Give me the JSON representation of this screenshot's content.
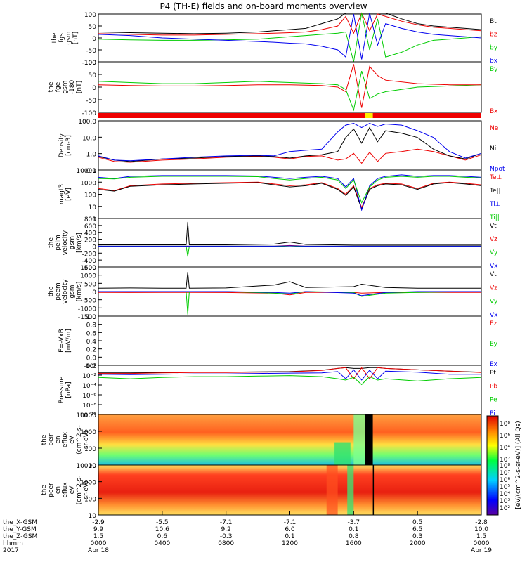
{
  "title": "P4 (TH-E) fields and on-board moments overview",
  "colors": {
    "black": "#000000",
    "red": "#ee0000",
    "green": "#00cc00",
    "blue": "#0000ee",
    "yellow": "#ffee00"
  },
  "chart_data": [
    {
      "type": "line",
      "name": "fgs",
      "ylabel": [
        "the",
        "fgs",
        "gsm",
        "[nT]"
      ],
      "ylim": [
        -100,
        100
      ],
      "yticks": [
        "100",
        "50",
        "0",
        "-50",
        "-100"
      ],
      "legend": [
        {
          "text": "Bt",
          "color": "black"
        },
        {
          "text": "bz",
          "color": "red"
        },
        {
          "text": "by",
          "color": "green"
        },
        {
          "text": "bx",
          "color": "blue"
        }
      ],
      "x": [
        0,
        2,
        4,
        6,
        8,
        10,
        11,
        12,
        13,
        14,
        15,
        15.5,
        16,
        16.5,
        17,
        17.5,
        18,
        19,
        20,
        21,
        22,
        23,
        24
      ],
      "series": [
        {
          "name": "Bt",
          "color": "black",
          "values": [
            25,
            22,
            20,
            18,
            20,
            25,
            30,
            35,
            40,
            60,
            80,
            110,
            110,
            110,
            110,
            110,
            105,
            80,
            60,
            50,
            45,
            40,
            35
          ]
        },
        {
          "name": "bz",
          "color": "red",
          "values": [
            18,
            15,
            12,
            12,
            15,
            18,
            20,
            22,
            25,
            35,
            50,
            90,
            20,
            120,
            30,
            100,
            90,
            70,
            55,
            45,
            40,
            35,
            30
          ]
        },
        {
          "name": "by",
          "color": "green",
          "values": [
            -5,
            -8,
            -10,
            -10,
            -8,
            -5,
            0,
            5,
            10,
            15,
            20,
            25,
            -100,
            110,
            -50,
            80,
            -80,
            -60,
            -30,
            -10,
            -5,
            0,
            5
          ]
        },
        {
          "name": "bx",
          "color": "blue",
          "values": [
            15,
            10,
            0,
            -5,
            -10,
            -15,
            -18,
            -22,
            -25,
            -35,
            -50,
            -80,
            100,
            -90,
            120,
            -30,
            60,
            40,
            25,
            15,
            10,
            5,
            0
          ]
        }
      ]
    },
    {
      "type": "line",
      "name": "fge",
      "ylabel": [
        "the",
        "fge",
        "gsm",
        "-180",
        "[nT]"
      ],
      "ylim": [
        -120,
        100
      ],
      "yticks": [
        "100",
        "50",
        "0",
        "-50",
        "-100"
      ],
      "legend": [
        {
          "text": "By",
          "color": "green"
        },
        {
          "text": "Bx",
          "color": "red"
        }
      ],
      "x": [
        0,
        2,
        4,
        6,
        8,
        10,
        12,
        14,
        15,
        15.5,
        16,
        16.5,
        17,
        17.5,
        18,
        20,
        22,
        24
      ],
      "series": [
        {
          "name": "By",
          "color": "green",
          "values": [
            15,
            10,
            5,
            5,
            10,
            15,
            10,
            5,
            0,
            -20,
            -110,
            60,
            -60,
            -40,
            -30,
            -10,
            -5,
            0
          ]
        },
        {
          "name": "Bx",
          "color": "red",
          "values": [
            0,
            -3,
            -5,
            -5,
            -3,
            0,
            0,
            -3,
            -10,
            -30,
            90,
            -100,
            80,
            40,
            20,
            5,
            0,
            0
          ]
        }
      ]
    },
    {
      "type": "line",
      "name": "density",
      "log": true,
      "ylabel": [
        "Density",
        "[cm-3]"
      ],
      "ylim": [
        0.1,
        300
      ],
      "yticks": [
        "100.0",
        "10.0",
        "1.0",
        "0.1"
      ],
      "legend": [
        {
          "text": "Ne",
          "color": "red"
        },
        {
          "text": "Ni",
          "color": "black"
        },
        {
          "text": "Npot",
          "color": "blue"
        }
      ],
      "x": [
        0,
        1,
        2,
        4,
        6,
        8,
        10,
        11,
        12,
        13,
        14,
        15,
        15.5,
        16,
        16.5,
        17,
        17.5,
        18,
        19,
        20,
        21,
        22,
        23,
        24
      ],
      "series": [
        {
          "name": "Ne",
          "color": "red",
          "values": [
            0.8,
            0.4,
            0.35,
            0.5,
            0.6,
            0.8,
            0.9,
            0.8,
            0.6,
            0.9,
            1.0,
            0.5,
            0.6,
            1.5,
            0.3,
            1.8,
            0.4,
            1.5,
            2.0,
            3.0,
            2.0,
            1.0,
            0.5,
            1.2
          ]
        },
        {
          "name": "Ni",
          "color": "black",
          "values": [
            0.9,
            0.5,
            0.4,
            0.6,
            0.7,
            0.9,
            1.0,
            0.9,
            0.7,
            1.0,
            1.2,
            2.0,
            20,
            80,
            8,
            100,
            10,
            60,
            40,
            20,
            3,
            1.0,
            0.6,
            1.5
          ]
        },
        {
          "name": "Npot",
          "color": "blue",
          "values": [
            1.0,
            0.5,
            0.45,
            0.6,
            0.8,
            1.0,
            1.1,
            1.0,
            2.0,
            2.5,
            3.0,
            50,
            150,
            200,
            100,
            200,
            120,
            180,
            150,
            60,
            20,
            2.0,
            0.7,
            1.5
          ]
        }
      ]
    },
    {
      "type": "line",
      "name": "temperature",
      "log": true,
      "ylabel": [
        "magt3",
        "[eV]"
      ],
      "ylim": [
        1,
        10000
      ],
      "yticks": [
        "10000",
        "1000",
        "100",
        "10",
        "1"
      ],
      "legend": [
        {
          "text": "Te⊥",
          "color": "red"
        },
        {
          "text": "Te||",
          "color": "black"
        },
        {
          "text": "Ti⊥",
          "color": "blue"
        },
        {
          "text": "Ti||",
          "color": "green"
        }
      ],
      "x": [
        0,
        1,
        2,
        4,
        6,
        8,
        10,
        11,
        12,
        13,
        14,
        15,
        15.5,
        16,
        16.5,
        17,
        17.5,
        18,
        19,
        20,
        21,
        22,
        23,
        24
      ],
      "series": [
        {
          "name": "Te⊥",
          "color": "red",
          "values": [
            300,
            200,
            500,
            700,
            800,
            900,
            1000,
            700,
            500,
            600,
            900,
            300,
            100,
            500,
            8,
            300,
            600,
            800,
            700,
            300,
            800,
            1000,
            800,
            600
          ]
        },
        {
          "name": "Te||",
          "color": "black",
          "values": [
            250,
            180,
            450,
            600,
            700,
            800,
            900,
            600,
            400,
            500,
            800,
            250,
            80,
            400,
            6,
            250,
            500,
            700,
            600,
            250,
            700,
            900,
            700,
            500
          ]
        },
        {
          "name": "Ti⊥",
          "color": "blue",
          "values": [
            2500,
            2000,
            3000,
            3500,
            3500,
            3500,
            3200,
            2500,
            2000,
            2500,
            3000,
            2000,
            400,
            2000,
            5,
            500,
            2000,
            3000,
            4000,
            3000,
            3500,
            3500,
            3000,
            2500
          ]
        },
        {
          "name": "Ti||",
          "color": "green",
          "values": [
            2000,
            1800,
            2500,
            3000,
            3000,
            3000,
            2800,
            2000,
            1500,
            2000,
            2500,
            1500,
            300,
            1500,
            20,
            400,
            1500,
            2500,
            3000,
            2500,
            3000,
            3000,
            2500,
            2200
          ]
        }
      ]
    },
    {
      "type": "line",
      "name": "peim_velocity",
      "ylabel": [
        "the",
        "peim",
        "velocity",
        "gsm",
        "[km/s]"
      ],
      "ylim": [
        -600,
        800
      ],
      "yticks": [
        "800",
        "600",
        "400",
        "200",
        "0",
        "-200",
        "-400",
        "-600"
      ],
      "legend": [
        {
          "text": "Vt",
          "color": "black"
        },
        {
          "text": "Vz",
          "color": "red"
        },
        {
          "text": "Vy",
          "color": "green"
        },
        {
          "text": "Vx",
          "color": "blue"
        }
      ],
      "x": [
        0,
        2,
        4,
        5.5,
        5.6,
        5.7,
        8,
        11,
        12,
        13,
        16,
        18,
        20,
        24
      ],
      "series": [
        {
          "name": "Vt",
          "color": "black",
          "values": [
            40,
            40,
            40,
            40,
            700,
            40,
            40,
            60,
            120,
            50,
            30,
            30,
            30,
            30
          ]
        },
        {
          "name": "Vz",
          "color": "red",
          "values": [
            0,
            0,
            0,
            0,
            0,
            0,
            0,
            0,
            20,
            0,
            0,
            0,
            0,
            0
          ]
        },
        {
          "name": "Vy",
          "color": "green",
          "values": [
            0,
            0,
            0,
            0,
            -300,
            0,
            0,
            0,
            -20,
            0,
            0,
            0,
            0,
            0
          ]
        },
        {
          "name": "Vx",
          "color": "blue",
          "values": [
            0,
            0,
            0,
            0,
            0,
            0,
            0,
            0,
            10,
            0,
            0,
            0,
            0,
            0
          ]
        }
      ]
    },
    {
      "type": "line",
      "name": "peem_velocity",
      "ylabel": [
        "the",
        "peem",
        "velocity",
        "gsm",
        "[km/s]"
      ],
      "ylim": [
        -1500,
        1500
      ],
      "yticks": [
        "1500",
        "1000",
        "500",
        "0",
        "-500",
        "-1000",
        "-1500"
      ],
      "legend": [
        {
          "text": "Vt",
          "color": "black"
        },
        {
          "text": "Vz",
          "color": "red"
        },
        {
          "text": "Vy",
          "color": "green"
        },
        {
          "text": "Vx",
          "color": "blue"
        }
      ],
      "x": [
        0,
        2,
        4,
        5.5,
        5.6,
        5.7,
        8,
        11,
        12,
        13,
        16,
        16.5,
        18,
        20,
        24
      ],
      "series": [
        {
          "name": "Vt",
          "color": "black",
          "values": [
            200,
            220,
            200,
            200,
            1200,
            200,
            220,
            400,
            600,
            250,
            300,
            450,
            250,
            200,
            200
          ]
        },
        {
          "name": "Vz",
          "color": "red",
          "values": [
            -50,
            -60,
            -50,
            -50,
            -50,
            -50,
            -60,
            -100,
            -200,
            -50,
            -50,
            -100,
            -50,
            -50,
            -50
          ]
        },
        {
          "name": "Vy",
          "color": "green",
          "values": [
            0,
            0,
            0,
            0,
            -1400,
            0,
            0,
            -100,
            -150,
            0,
            -50,
            -300,
            -100,
            -50,
            0
          ]
        },
        {
          "name": "Vx",
          "color": "blue",
          "values": [
            0,
            0,
            0,
            0,
            0,
            0,
            0,
            -50,
            -100,
            0,
            -100,
            -250,
            -50,
            0,
            0
          ]
        }
      ]
    },
    {
      "type": "line",
      "name": "efield",
      "ylabel": [
        "E=-VxB",
        "[mV/m]"
      ],
      "ylim": [
        -0.2,
        1.0
      ],
      "yticks": [
        "1.0",
        "0.8",
        "0.6",
        "0.4",
        "0.2",
        "0.0",
        "-0.2"
      ],
      "legend": [
        {
          "text": "Ez",
          "color": "red"
        },
        {
          "text": "Ey",
          "color": "green"
        },
        {
          "text": "Ex",
          "color": "blue"
        }
      ],
      "x": [
        0,
        24
      ],
      "series": []
    },
    {
      "type": "line",
      "name": "pressure",
      "log": true,
      "ylabel": [
        "Pressure",
        "[nPa]"
      ],
      "ylim": [
        1e-10,
        10
      ],
      "yticks": [
        "10⁰",
        "10⁻²",
        "10⁻⁴",
        "10⁻⁶",
        "10⁻⁸",
        "10⁻¹⁰"
      ],
      "legend": [
        {
          "text": "Pt",
          "color": "black"
        },
        {
          "text": "Pb",
          "color": "red"
        },
        {
          "text": "Pe",
          "color": "green"
        },
        {
          "text": "Pi",
          "color": "blue"
        }
      ],
      "x": [
        0,
        2,
        4,
        6,
        8,
        10,
        12,
        14,
        15,
        15.5,
        16,
        16.5,
        17,
        17.5,
        18,
        20,
        22,
        24
      ],
      "series": [
        {
          "name": "Pt",
          "color": "black",
          "values": [
            0.2,
            0.2,
            0.25,
            0.3,
            0.3,
            0.35,
            0.4,
            0.8,
            2.0,
            3.0,
            2.0,
            2.0,
            3.0,
            3.0,
            2.0,
            1.0,
            0.5,
            0.3
          ]
        },
        {
          "name": "Pb",
          "color": "red",
          "values": [
            0.15,
            0.15,
            0.2,
            0.25,
            0.25,
            0.3,
            0.35,
            0.7,
            2.0,
            3.0,
            0.01,
            3.0,
            0.01,
            3.0,
            2.0,
            1.0,
            0.5,
            0.25
          ]
        },
        {
          "name": "Pe",
          "color": "green",
          "values": [
            0.02,
            0.01,
            0.02,
            0.03,
            0.03,
            0.04,
            0.05,
            0.03,
            0.01,
            0.005,
            0.02,
            0.0005,
            0.03,
            0.005,
            0.01,
            0.003,
            0.01,
            0.02
          ]
        },
        {
          "name": "Pi",
          "color": "blue",
          "values": [
            0.1,
            0.08,
            0.1,
            0.12,
            0.12,
            0.15,
            0.18,
            0.2,
            0.4,
            0.01,
            1.0,
            0.005,
            0.8,
            0.01,
            0.5,
            0.3,
            0.1,
            0.1
          ]
        }
      ]
    },
    {
      "type": "heatmap",
      "name": "peir",
      "ylabel": [
        "the",
        "peir",
        "en",
        "eflux",
        "eV",
        "(cm^2-s-",
        "sr-eV)"
      ],
      "yticks": [
        "10000",
        "1000",
        "100",
        "10"
      ]
    },
    {
      "type": "heatmap",
      "name": "peer",
      "ylabel": [
        "the",
        "peer",
        "en",
        "eflux",
        "eV",
        "(cm^2-s-",
        "sr-eV)"
      ],
      "yticks": [
        "10000",
        "1000",
        "100",
        "10"
      ]
    }
  ],
  "colorbar": {
    "label": "[eV/(cm^2-s-sr-eV)] (All Qs)",
    "upper_ticks": [
      "10⁸",
      "10⁶",
      "10⁴",
      "10²"
    ],
    "lower_ticks": [
      "10⁸",
      "10⁷",
      "10⁶",
      "10⁵",
      "10⁴",
      "10³",
      "10²"
    ]
  },
  "state_bar": {
    "segments": [
      {
        "start": 0,
        "end": 16.7,
        "color": "red"
      },
      {
        "start": 16.7,
        "end": 17.2,
        "color": "yellow"
      },
      {
        "start": 17.2,
        "end": 24,
        "color": "red"
      }
    ]
  },
  "xaxis": {
    "hours": [
      0,
      4,
      8,
      12,
      16,
      20,
      24
    ],
    "rows": [
      {
        "label": "the_X-GSM",
        "values": [
          "-2.9",
          "-5.5",
          "-7.1",
          "-7.1",
          "-3.7",
          "0.5",
          "-2.8"
        ]
      },
      {
        "label": "the_Y-GSM",
        "values": [
          "9.9",
          "10.6",
          "9.2",
          "6.0",
          "0.1",
          "6.5",
          "10.0"
        ]
      },
      {
        "label": "the_Z-GSM",
        "values": [
          "1.5",
          "0.6",
          "-0.3",
          "0.1",
          "0.8",
          "0.3",
          "1.5"
        ]
      },
      {
        "label": "hhmm",
        "values": [
          "0000",
          "0400",
          "0800",
          "1200",
          "1600",
          "2000",
          "0000"
        ]
      },
      {
        "label": "2017",
        "values": [
          "Apr 18",
          "",
          "",
          "",
          "",
          "",
          "Apr 19"
        ]
      }
    ]
  }
}
